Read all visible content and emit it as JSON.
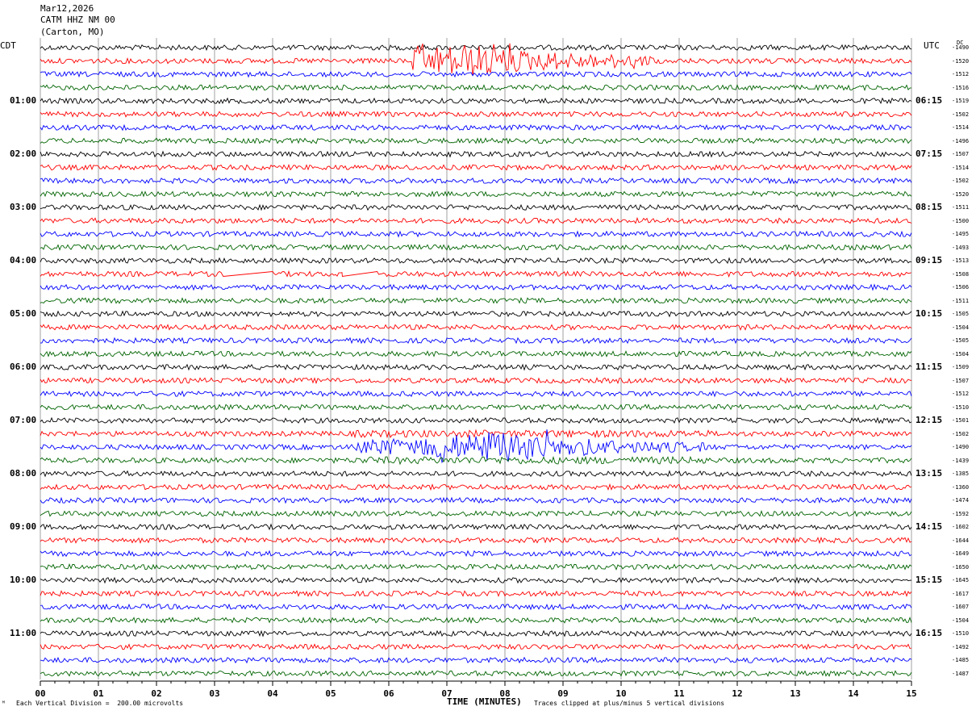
{
  "header": {
    "date": "Mar12,2026",
    "station": "CATM HHZ NM 00",
    "location": "(Carton, MO)"
  },
  "tz_left": "CDT",
  "tz_right": "UTC",
  "dc_label": "DC",
  "footer": {
    "scale_note": "Each Vertical Division =  200.00 microvolts",
    "clip_note": "Traces clipped at plus/minus 5 vertical divisions",
    "mark": "ᴹ"
  },
  "chart_data": {
    "type": "line",
    "title": "",
    "xlabel": "TIME (MINUTES)",
    "ylabel": "",
    "x_ticks": [
      "00",
      "01",
      "02",
      "03",
      "04",
      "05",
      "06",
      "07",
      "08",
      "09",
      "10",
      "11",
      "12",
      "13",
      "14",
      "15"
    ],
    "xlim": [
      0,
      15
    ],
    "grid": true,
    "trace_minutes": 15,
    "trace_colors": [
      "#000000",
      "#ff0000",
      "#0000ff",
      "#006400"
    ],
    "left_hour_labels": [
      "01:00",
      "02:00",
      "03:00",
      "04:00",
      "05:00",
      "06:00",
      "07:00",
      "08:00",
      "09:00",
      "10:00",
      "11:00"
    ],
    "right_hour_labels": [
      "06:15",
      "07:15",
      "08:15",
      "09:15",
      "10:15",
      "11:15",
      "12:15",
      "13:15",
      "14:15",
      "15:15",
      "16:15"
    ],
    "dc_offsets": [
      -1490,
      -1520,
      -1512,
      -1516,
      -1519,
      -1502,
      -1514,
      -1496,
      -1507,
      -1514,
      -1502,
      -1520,
      -1511,
      -1500,
      -1495,
      -1493,
      -1513,
      -1508,
      -1506,
      -1511,
      -1505,
      -1504,
      -1505,
      -1504,
      -1509,
      -1507,
      -1512,
      -1510,
      -1501,
      -1502,
      -1490,
      -1439,
      -1385,
      -1360,
      -1474,
      -1592,
      -1602,
      -1644,
      -1649,
      -1650,
      -1645,
      -1617,
      -1607,
      -1504,
      -1510,
      -1492,
      -1485,
      -1487
    ],
    "events": [
      {
        "trace": 1,
        "start_min": 6.4,
        "end_min": 10.6,
        "peak_min": 7.3,
        "level": "large"
      },
      {
        "trace": 30,
        "start_min": 5.4,
        "end_min": 11.5,
        "peak_min": 7.8,
        "level": "large"
      }
    ],
    "gaps": [
      {
        "trace": 17,
        "start_min": 3.15,
        "end_min": 4.0
      },
      {
        "trace": 17,
        "start_min": 5.2,
        "end_min": 5.8
      }
    ]
  }
}
